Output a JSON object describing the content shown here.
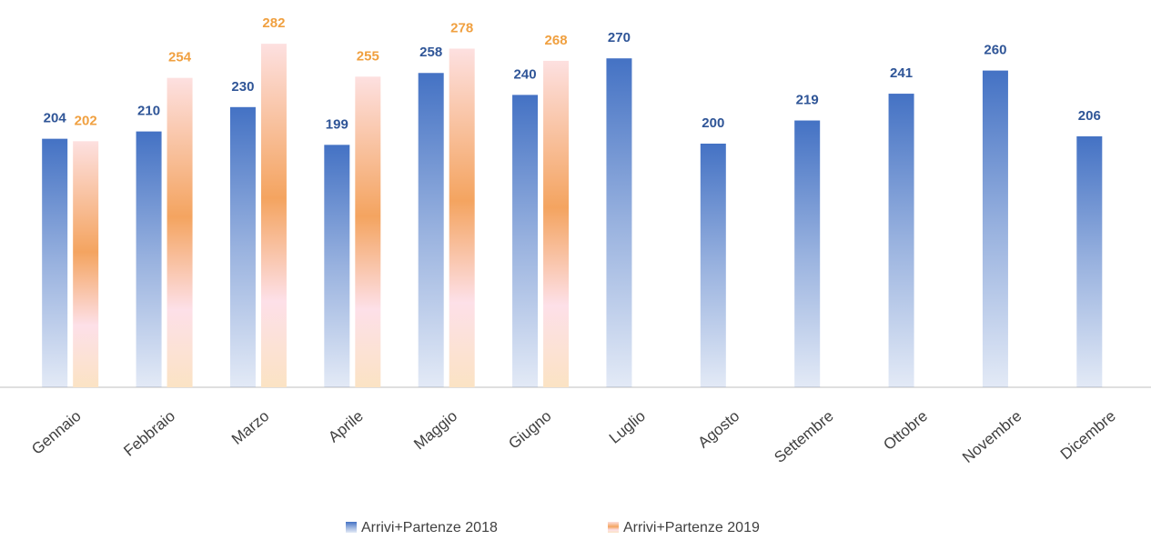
{
  "chart_data": {
    "type": "bar",
    "categories": [
      "Gennaio",
      "Febbraio",
      "Marzo",
      "Aprile",
      "Maggio",
      "Giugno",
      "Luglio",
      "Agosto",
      "Settembre",
      "Ottobre",
      "Novembre",
      "Dicembre"
    ],
    "series": [
      {
        "name": "Arrivi+Partenze 2018",
        "color": "#4472c4",
        "values": [
          204,
          210,
          230,
          199,
          258,
          240,
          270,
          200,
          219,
          241,
          260,
          206
        ]
      },
      {
        "name": "Arrivi+Partenze 2019",
        "color": "#f4a460",
        "values": [
          202,
          254,
          282,
          255,
          278,
          268,
          null,
          null,
          null,
          null,
          null,
          null
        ]
      }
    ],
    "ylim": [
      0,
      300
    ],
    "legend": "bottom"
  }
}
